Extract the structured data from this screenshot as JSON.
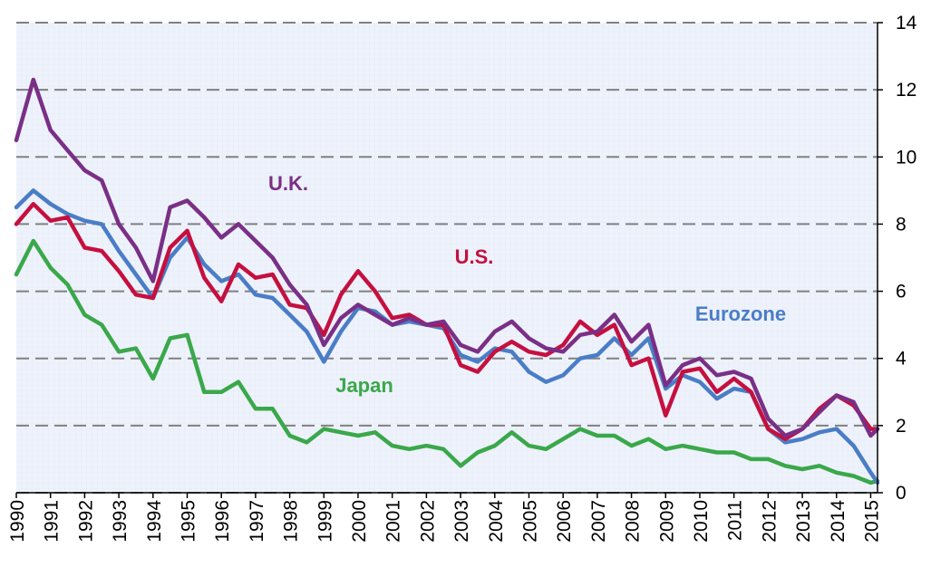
{
  "chart_data": {
    "type": "line",
    "x": [
      1990,
      1990.5,
      1991,
      1991.5,
      1992,
      1992.5,
      1993,
      1993.5,
      1994,
      1994.5,
      1995,
      1995.5,
      1996,
      1996.5,
      1997,
      1997.5,
      1998,
      1998.5,
      1999,
      1999.5,
      2000,
      2000.5,
      2001,
      2001.5,
      2002,
      2002.5,
      2003,
      2003.5,
      2004,
      2004.5,
      2005,
      2005.5,
      2006,
      2006.5,
      2007,
      2007.5,
      2008,
      2008.5,
      2009,
      2009.5,
      2010,
      2010.5,
      2011,
      2011.5,
      2012,
      2012.5,
      2013,
      2013.5,
      2014,
      2014.5,
      2015,
      2015.2
    ],
    "series": [
      {
        "name": "U.K.",
        "color": "#7a2f86",
        "values": [
          10.5,
          12.3,
          10.8,
          10.2,
          9.6,
          9.3,
          8.0,
          7.3,
          6.3,
          8.5,
          8.7,
          8.2,
          7.6,
          8.0,
          7.5,
          7.0,
          6.2,
          5.6,
          4.4,
          5.2,
          5.6,
          5.3,
          5.0,
          5.2,
          5.0,
          5.1,
          4.4,
          4.2,
          4.8,
          5.1,
          4.6,
          4.3,
          4.2,
          4.7,
          4.8,
          5.3,
          4.5,
          5.0,
          3.2,
          3.8,
          4.0,
          3.5,
          3.6,
          3.4,
          2.2,
          1.7,
          1.9,
          2.4,
          2.9,
          2.7,
          1.7,
          1.9
        ]
      },
      {
        "name": "U.S.",
        "color": "#c5103f",
        "values": [
          8.0,
          8.6,
          8.1,
          8.2,
          7.3,
          7.2,
          6.6,
          5.9,
          5.8,
          7.3,
          7.8,
          6.4,
          5.7,
          6.8,
          6.4,
          6.5,
          5.6,
          5.5,
          4.7,
          5.9,
          6.6,
          6.0,
          5.2,
          5.3,
          5.0,
          5.0,
          3.8,
          3.6,
          4.2,
          4.5,
          4.2,
          4.1,
          4.4,
          5.1,
          4.7,
          5.0,
          3.8,
          4.0,
          2.3,
          3.6,
          3.7,
          3.0,
          3.4,
          3.0,
          1.9,
          1.6,
          1.9,
          2.5,
          2.9,
          2.6,
          1.9,
          1.9
        ]
      },
      {
        "name": "Eurozone",
        "color": "#4a7dc6",
        "values": [
          8.5,
          9.0,
          8.6,
          8.3,
          8.1,
          8.0,
          7.2,
          6.5,
          5.8,
          7.0,
          7.6,
          6.8,
          6.3,
          6.5,
          5.9,
          5.8,
          5.3,
          4.8,
          3.9,
          4.8,
          5.5,
          5.4,
          5.0,
          5.1,
          5.0,
          4.9,
          4.1,
          3.9,
          4.3,
          4.2,
          3.6,
          3.3,
          3.5,
          4.0,
          4.1,
          4.6,
          4.1,
          4.6,
          3.1,
          3.5,
          3.3,
          2.8,
          3.1,
          3.0,
          1.9,
          1.5,
          1.6,
          1.8,
          1.9,
          1.4,
          0.6,
          0.3
        ]
      },
      {
        "name": "Japan",
        "color": "#3aa84a",
        "values": [
          6.5,
          7.5,
          6.7,
          6.2,
          5.3,
          5.0,
          4.2,
          4.3,
          3.4,
          4.6,
          4.7,
          3.0,
          3.0,
          3.3,
          2.5,
          2.5,
          1.7,
          1.5,
          1.9,
          1.8,
          1.7,
          1.8,
          1.4,
          1.3,
          1.4,
          1.3,
          0.8,
          1.2,
          1.4,
          1.8,
          1.4,
          1.3,
          1.6,
          1.9,
          1.7,
          1.7,
          1.4,
          1.6,
          1.3,
          1.4,
          1.3,
          1.2,
          1.2,
          1.0,
          1.0,
          0.8,
          0.7,
          0.8,
          0.6,
          0.5,
          0.3,
          0.35
        ]
      }
    ],
    "xlim": [
      1990,
      2015.2
    ],
    "xticks": [
      1990,
      1991,
      1992,
      1993,
      1994,
      1995,
      1996,
      1997,
      1998,
      1999,
      2000,
      2001,
      2002,
      2003,
      2004,
      2005,
      2006,
      2007,
      2008,
      2009,
      2010,
      2011,
      2012,
      2013,
      2014,
      2015
    ],
    "ylim": [
      0,
      14
    ],
    "yticks": [
      0,
      2,
      4,
      6,
      8,
      10,
      12,
      14
    ],
    "y_axis_side": "right",
    "grid": true
  }
}
